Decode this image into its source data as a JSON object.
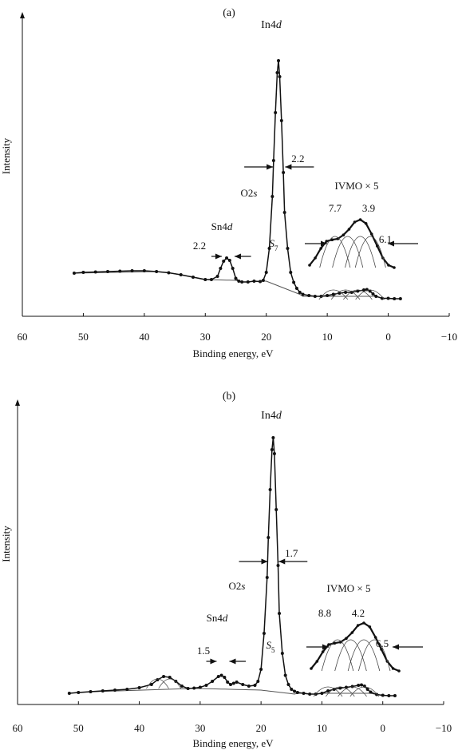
{
  "chart_data": [
    {
      "type": "line",
      "panel_label": "(a)",
      "xlabel": "Binding energy, eV",
      "ylabel": "Intensity",
      "x_reversed": true,
      "xlim": [
        60,
        -10
      ],
      "xticks": [
        "60",
        "50",
        "40",
        "30",
        "20",
        "10",
        "0",
        "−10"
      ],
      "xtick_values": [
        60,
        50,
        40,
        30,
        20,
        10,
        0,
        -10
      ],
      "annotations": {
        "peak": "In4d",
        "peak_prefix": "In4",
        "peak_suffix": "d",
        "o2s_prefix": "O2",
        "o2s_suffix": "s",
        "sn_prefix": "Sn4",
        "sn_suffix": "d",
        "s_letter": "S",
        "s_sub": "7",
        "fwhm_in": "2.2",
        "fwhm_sn": "2.2",
        "ivmo": "IVMO × 5",
        "ivmo_left": "7.7",
        "ivmo_right": "3.9",
        "ivmo_width": "6.1"
      },
      "series": [
        {
          "x": [
            51.5,
            50,
            48,
            46,
            44,
            42,
            40,
            38,
            36,
            34,
            32,
            30,
            29,
            28,
            27.5,
            27,
            26.5,
            26,
            25.5,
            25,
            24.5,
            24,
            23,
            22,
            21,
            20.5,
            20,
            19.5,
            19,
            18.8,
            18.5,
            18.2,
            18,
            17.8,
            17.5,
            17.2,
            17,
            16.5,
            16,
            15.5,
            15,
            14.5,
            14,
            13,
            12,
            11,
            10,
            9,
            8,
            7,
            6,
            5,
            4,
            3.5,
            3,
            2.5,
            2,
            1,
            0,
            -1,
            -2
          ],
          "y": [
            0.58,
            0.6,
            0.61,
            0.62,
            0.63,
            0.64,
            0.64,
            0.62,
            0.59,
            0.54,
            0.48,
            0.42,
            0.42,
            0.5,
            0.7,
            0.88,
            0.96,
            0.9,
            0.7,
            0.45,
            0.38,
            0.36,
            0.36,
            0.38,
            0.37,
            0.4,
            0.6,
            1.2,
            2.5,
            3.4,
            4.6,
            5.6,
            5.9,
            5.5,
            4.4,
            3.1,
            2.1,
            1.2,
            0.6,
            0.35,
            0.2,
            0.1,
            0.05,
            0.02,
            0.0,
            0.0,
            0.02,
            0.05,
            0.08,
            0.1,
            0.1,
            0.13,
            0.16,
            0.17,
            0.13,
            0.06,
            0.0,
            -0.05,
            -0.05,
            -0.06,
            -0.06
          ]
        }
      ]
    },
    {
      "type": "line",
      "panel_label": "(b)",
      "xlabel": "Binding energy, eV",
      "ylabel": "Intensity",
      "x_reversed": true,
      "xlim": [
        60,
        -10
      ],
      "xticks": [
        "60",
        "50",
        "40",
        "30",
        "20",
        "10",
        "0",
        "−10"
      ],
      "xtick_values": [
        60,
        50,
        40,
        30,
        20,
        10,
        0,
        -10
      ],
      "annotations": {
        "peak": "In4d",
        "peak_prefix": "In4",
        "peak_suffix": "d",
        "o2s_prefix": "O2",
        "o2s_suffix": "s",
        "sn_prefix": "Sn4",
        "sn_suffix": "d",
        "s_letter": "S",
        "s_sub": "5",
        "fwhm_in": "1.7",
        "fwhm_sn": "1.5",
        "ivmo": "IVMO × 5",
        "ivmo_left": "8.8",
        "ivmo_right": "4.2",
        "ivmo_width": "6.5"
      },
      "series": [
        {
          "x": [
            51.5,
            50,
            48,
            46,
            44,
            42,
            40,
            38,
            37,
            36,
            35,
            34,
            33,
            32,
            31,
            30,
            29,
            28,
            27,
            26.5,
            26,
            25.5,
            25,
            24.5,
            24,
            23,
            22,
            21,
            20.5,
            20,
            19.5,
            19,
            18.8,
            18.5,
            18.2,
            18,
            17.8,
            17.5,
            17.2,
            17,
            16.5,
            16,
            15.5,
            15,
            14.5,
            14,
            13,
            12,
            11,
            10,
            9,
            8,
            7,
            6,
            5,
            4,
            3.5,
            3,
            2.5,
            2,
            1,
            0,
            -1,
            -2
          ],
          "y": [
            0.0,
            0.02,
            0.04,
            0.06,
            0.08,
            0.1,
            0.14,
            0.22,
            0.34,
            0.42,
            0.4,
            0.3,
            0.18,
            0.12,
            0.13,
            0.15,
            0.2,
            0.3,
            0.42,
            0.45,
            0.4,
            0.28,
            0.22,
            0.25,
            0.28,
            0.22,
            0.18,
            0.2,
            0.3,
            0.6,
            1.5,
            2.9,
            3.9,
            5.1,
            6.1,
            6.4,
            6.0,
            4.6,
            3.2,
            2.0,
            1.0,
            0.45,
            0.22,
            0.1,
            0.05,
            0.02,
            0.0,
            -0.02,
            -0.02,
            0.0,
            0.06,
            0.1,
            0.13,
            0.15,
            0.17,
            0.2,
            0.21,
            0.18,
            0.1,
            0.03,
            -0.03,
            -0.05,
            -0.06,
            -0.06
          ]
        }
      ]
    }
  ]
}
